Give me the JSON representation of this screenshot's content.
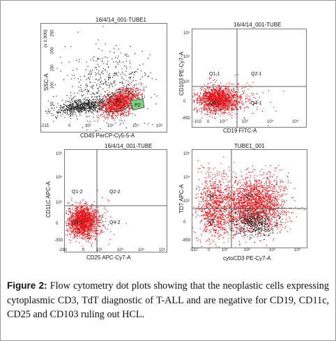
{
  "figure": {
    "panels": [
      {
        "id": "p1",
        "title": "16/4/14_001-TUBE1",
        "xlabel": "CD45 PerCP-Cy5-5-A",
        "ylabel": "SSC-A",
        "xticks": [
          "-215",
          "0",
          "10²",
          "10³",
          "10⁴",
          "10⁵"
        ],
        "yticks": [
          "250",
          "200",
          "150",
          "100",
          "50",
          "0"
        ],
        "yscale_label": "(x 1,000)",
        "gates": [
          "P1",
          "P2"
        ]
      },
      {
        "id": "p2",
        "title": "16/4/14_001-TUBE",
        "xlabel": "CD19 FITC-A",
        "ylabel": "CD103 PE-Cy7-A",
        "xticks": [
          "-102",
          "0",
          "10²",
          "10³",
          "10⁴",
          "10⁵"
        ],
        "yticks": [
          "10⁵",
          "10⁴",
          "10³",
          "0",
          "-892"
        ],
        "quadrants": [
          "Q1-1",
          "Q2-1",
          "Q3-1",
          "Q4-1"
        ]
      },
      {
        "id": "p3",
        "title": "16/4/14_001-TUBE",
        "xlabel": "CD25 APC-Cy7-A",
        "ylabel": "CD11C APC-A",
        "xticks": [
          "-290",
          "0",
          "10²",
          "10³",
          "10⁴",
          "10⁵"
        ],
        "yticks": [
          "10⁵",
          "10⁴",
          "10³",
          "0",
          "-393"
        ],
        "quadrants": [
          "Q1-2",
          "Q2-2",
          "Q3-2",
          "Q4-2"
        ]
      },
      {
        "id": "p4",
        "title": "TUBE1_001",
        "xlabel": "cytoCD3 PE-Cy7-A",
        "ylabel": "TDT APC-A",
        "xticks": [
          "-537",
          "0",
          "10²",
          "10³",
          "10⁴",
          "10⁵"
        ],
        "yticks": [
          "10⁵",
          "10⁴",
          "10³",
          "0",
          "-859"
        ],
        "quadrants": [
          "Q1",
          "Q2",
          "Q3",
          "Q4"
        ]
      }
    ],
    "caption_label": "Figure 2:",
    "caption_text": " Flow cytometry dot plots showing that the neoplastic cells expressing cytoplasmic CD3, TdT diagnostic of T-ALL and are negative for CD19, CD11c, CD25 and CD103 ruling out HCL.",
    "colors": {
      "events": "#e0141a",
      "other": "#222222",
      "gate_p2": "#7fd07f",
      "border": "#7a7a7a"
    }
  }
}
